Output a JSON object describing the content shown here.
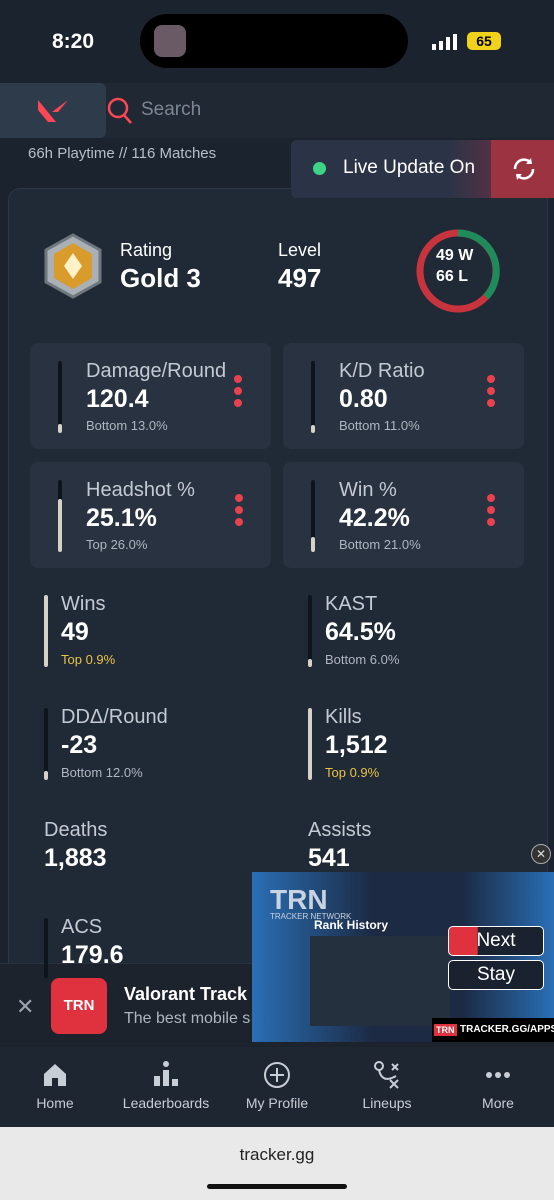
{
  "status": {
    "time": "8:20",
    "battery": "65"
  },
  "header": {
    "search_placeholder": "Search"
  },
  "summary": "66h Playtime  // 116 Matches",
  "live_update": "Live Update On",
  "rating": {
    "label": "Rating",
    "value": "Gold 3"
  },
  "level": {
    "label": "Level",
    "value": "497"
  },
  "record": {
    "wins": "49 W",
    "losses": "66 L"
  },
  "cards": [
    {
      "label": "Damage/Round",
      "value": "120.4",
      "percentile": "Bottom 13.0%"
    },
    {
      "label": "K/D Ratio",
      "value": "0.80",
      "percentile": "Bottom 11.0%"
    },
    {
      "label": "Headshot %",
      "value": "25.1%",
      "percentile": "Top 26.0%"
    },
    {
      "label": "Win %",
      "value": "42.2%",
      "percentile": "Bottom 21.0%"
    }
  ],
  "stats": [
    {
      "label": "Wins",
      "value": "49",
      "percentile": "Top 0.9%",
      "percentile_color": "#e8c246"
    },
    {
      "label": "KAST",
      "value": "64.5%",
      "percentile": "Bottom 6.0%"
    },
    {
      "label": "DDΔ/Round",
      "value": "-23",
      "percentile": "Bottom 12.0%"
    },
    {
      "label": "Kills",
      "value": "1,512",
      "percentile": "Top 0.9%",
      "percentile_color": "#e8c246"
    },
    {
      "label": "Deaths",
      "value": "1,883"
    },
    {
      "label": "Assists",
      "value": "541"
    },
    {
      "label": "ACS",
      "value": "179.6"
    }
  ],
  "ad": {
    "logo": "TRN",
    "title": "Valorant Track",
    "subtitle": "The best mobile s"
  },
  "video": {
    "brand": "TRN",
    "network": "TRACKER NETWORK",
    "heading": "Rank History",
    "next": "Next",
    "stay": "Stay",
    "footer": "TRACKER.GG/APPS"
  },
  "nav": [
    "Home",
    "Leaderboards",
    "My Profile",
    "Lineups",
    "More"
  ],
  "url": "tracker.gg"
}
